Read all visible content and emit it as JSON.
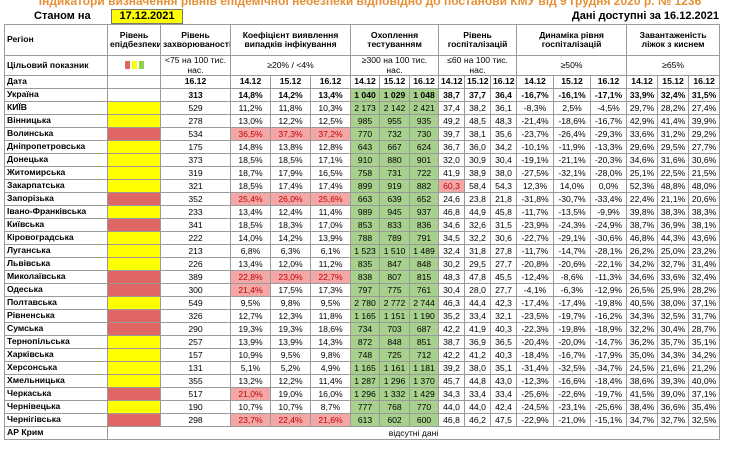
{
  "title": "Індикатори визначення рівнів епідемічної небезпеки відповідно до постанови КМУ від 9 грудня 2020 р. № 1236",
  "as_of_label": "Станом на",
  "as_of_date": "17.12.2021",
  "data_available": "Дані доступні за 16.12.2021",
  "header": {
    "region": "Регіон",
    "target": "Цільовий показник",
    "date": "Дата",
    "level": "Рівень епідбезпеки",
    "level_colors": [
      "#e06666",
      "#ffff00",
      "#92d050"
    ],
    "groups": [
      {
        "title": "Рівень захворюваності",
        "target": "<75 на 100 тис. нас.",
        "dates": [
          "16.12"
        ]
      },
      {
        "title": "Коефіцієнт виявлення випадків інфікування",
        "target": "≥20% / <4%",
        "dates": [
          "14.12",
          "15.12",
          "16.12"
        ]
      },
      {
        "title": "Охоплення тестуванням",
        "target": "≥300 на 100 тис. нас.",
        "dates": [
          "14.12",
          "15.12",
          "16.12"
        ]
      },
      {
        "title": "Рівень госпіталізацій",
        "target": "≤60 на 100 тис. нас.",
        "dates": [
          "14.12",
          "15.12",
          "16.12"
        ]
      },
      {
        "title": "Динаміка рівня госпіталізацій",
        "target": "≥50%",
        "dates": [
          "14.12",
          "15.12",
          "16.12"
        ]
      },
      {
        "title": "Завантаженість ліжок з киснем",
        "target": "≥65%",
        "dates": [
          "14.12",
          "15.12",
          "16.12"
        ]
      }
    ]
  },
  "rows": [
    {
      "region": "Україна",
      "cells": [
        "313",
        "14,8%",
        "14,2%",
        "13,4%",
        "1 040",
        "1 029",
        "1 048",
        "38,7",
        "37,7",
        "36,4",
        "-16,7%",
        "-16,1%",
        "-17,1%",
        "33,9%",
        "32,4%",
        "31,5%"
      ]
    },
    {
      "region": "КИЇВ",
      "level_color": "#ffff00",
      "cells": [
        "529",
        "11,2%",
        "11,8%",
        "10,3%",
        "2 173",
        "2 142",
        "2 421",
        "37,4",
        "38,2",
        "36,1",
        "-8,3%",
        "2,5%",
        "-4,5%",
        "29,7%",
        "28,2%",
        "27,4%"
      ]
    },
    {
      "region": "Вінницька",
      "level_color": "#ffff00",
      "cells": [
        "278",
        "13,0%",
        "12,2%",
        "12,5%",
        "985",
        "955",
        "935",
        "49,2",
        "48,5",
        "48,3",
        "-21,4%",
        "-18,6%",
        "-16,7%",
        "42,9%",
        "41,4%",
        "39,9%"
      ]
    },
    {
      "region": "Волинська",
      "level_color": "#e06666",
      "alert": [
        1,
        2,
        3
      ],
      "cells": [
        "534",
        "36,5%",
        "37,3%",
        "37,2%",
        "770",
        "732",
        "730",
        "39,7",
        "38,1",
        "35,6",
        "-23,7%",
        "-26,4%",
        "-29,3%",
        "33,6%",
        "31,2%",
        "29,2%"
      ]
    },
    {
      "region": "Дніпропетровська",
      "level_color": "#ffff00",
      "cells": [
        "175",
        "14,8%",
        "13,8%",
        "12,8%",
        "643",
        "667",
        "624",
        "36,7",
        "36,0",
        "34,2",
        "-10,1%",
        "-11,9%",
        "-13,3%",
        "29,6%",
        "29,5%",
        "27,7%"
      ]
    },
    {
      "region": "Донецька",
      "level_color": "#ffff00",
      "cells": [
        "373",
        "18,5%",
        "18,5%",
        "17,1%",
        "910",
        "880",
        "901",
        "32,0",
        "30,9",
        "30,4",
        "-19,1%",
        "-21,1%",
        "-20,3%",
        "34,6%",
        "31,6%",
        "30,6%"
      ]
    },
    {
      "region": "Житомирська",
      "level_color": "#ffff00",
      "cells": [
        "319",
        "18,7%",
        "17,9%",
        "16,5%",
        "758",
        "731",
        "722",
        "41,9",
        "38,9",
        "38,0",
        "-27,5%",
        "-32,1%",
        "-28,0%",
        "25,1%",
        "22,5%",
        "21,5%"
      ]
    },
    {
      "region": "Закарпатська",
      "level_color": "#ffff00",
      "alert": [
        7
      ],
      "cells": [
        "321",
        "18,5%",
        "17,4%",
        "17,4%",
        "899",
        "919",
        "882",
        "60,3",
        "58,4",
        "54,3",
        "12,3%",
        "14,0%",
        "0,0%",
        "52,3%",
        "48,8%",
        "48,0%"
      ]
    },
    {
      "region": "Запорізька",
      "level_color": "#e06666",
      "alert": [
        1,
        2,
        3
      ],
      "cells": [
        "352",
        "25,4%",
        "26,0%",
        "25,6%",
        "663",
        "639",
        "652",
        "24,6",
        "23,8",
        "21,8",
        "-31,8%",
        "-30,7%",
        "-33,4%",
        "22,4%",
        "21,1%",
        "20,6%"
      ]
    },
    {
      "region": "Івано-Франківська",
      "level_color": "#ffff00",
      "cells": [
        "233",
        "13,4%",
        "12,4%",
        "11,4%",
        "989",
        "945",
        "937",
        "46,8",
        "44,9",
        "45,8",
        "-11,7%",
        "-13,5%",
        "-9,9%",
        "39,8%",
        "38,3%",
        "38,3%"
      ]
    },
    {
      "region": "Київська",
      "level_color": "#e06666",
      "cells": [
        "341",
        "18,5%",
        "18,3%",
        "17,0%",
        "853",
        "833",
        "836",
        "34,6",
        "32,6",
        "31,5",
        "-23,9%",
        "-24,3%",
        "-24,9%",
        "38,7%",
        "36,9%",
        "38,1%"
      ]
    },
    {
      "region": "Кіровоградська",
      "level_color": "#ffff00",
      "cells": [
        "222",
        "14,0%",
        "14,2%",
        "13,9%",
        "788",
        "789",
        "791",
        "34,5",
        "32,2",
        "30,6",
        "-22,7%",
        "-29,1%",
        "-30,6%",
        "46,8%",
        "44,3%",
        "43,6%"
      ]
    },
    {
      "region": "Луганська",
      "level_color": "#ffff00",
      "cells": [
        "213",
        "6,8%",
        "6,3%",
        "6,1%",
        "1 523",
        "1 510",
        "1 489",
        "32,4",
        "31,8",
        "27,8",
        "-11,7%",
        "-14,7%",
        "-28,1%",
        "26,2%",
        "25,0%",
        "23,2%"
      ]
    },
    {
      "region": "Львівська",
      "level_color": "#ffff00",
      "cells": [
        "226",
        "13,4%",
        "12,0%",
        "11,2%",
        "835",
        "847",
        "848",
        "30,2",
        "29,5",
        "27,7",
        "-20,8%",
        "-20,6%",
        "-22,1%",
        "34,2%",
        "32,7%",
        "31,4%"
      ]
    },
    {
      "region": "Миколаївська",
      "level_color": "#e06666",
      "alert": [
        1,
        2,
        3
      ],
      "cells": [
        "389",
        "22,8%",
        "23,0%",
        "22,7%",
        "838",
        "807",
        "815",
        "48,3",
        "47,8",
        "45,5",
        "-12,4%",
        "-8,6%",
        "-11,3%",
        "34,6%",
        "33,6%",
        "32,4%"
      ]
    },
    {
      "region": "Одеська",
      "level_color": "#e06666",
      "alert": [
        1
      ],
      "cells": [
        "300",
        "21,4%",
        "17,5%",
        "17,3%",
        "797",
        "775",
        "761",
        "30,4",
        "28,0",
        "27,7",
        "-4,1%",
        "-6,3%",
        "-12,9%",
        "26,5%",
        "25,9%",
        "28,2%"
      ]
    },
    {
      "region": "Полтавська",
      "level_color": "#ffff00",
      "cells": [
        "549",
        "9,5%",
        "9,8%",
        "9,5%",
        "2 780",
        "2 772",
        "2 744",
        "46,3",
        "44,4",
        "42,3",
        "-17,4%",
        "-17,4%",
        "-19,8%",
        "40,5%",
        "38,0%",
        "37,1%"
      ]
    },
    {
      "region": "Рівненська",
      "level_color": "#e06666",
      "cells": [
        "326",
        "12,7%",
        "12,3%",
        "11,8%",
        "1 165",
        "1 151",
        "1 190",
        "35,2",
        "33,4",
        "32,1",
        "-23,5%",
        "-19,7%",
        "-16,2%",
        "34,3%",
        "32,5%",
        "31,7%"
      ]
    },
    {
      "region": "Сумська",
      "level_color": "#e06666",
      "cells": [
        "290",
        "19,3%",
        "19,3%",
        "18,6%",
        "734",
        "703",
        "687",
        "42,2",
        "41,9",
        "40,3",
        "-22,3%",
        "-19,8%",
        "-18,9%",
        "32,2%",
        "30,4%",
        "28,7%"
      ]
    },
    {
      "region": "Тернопільська",
      "level_color": "#ffff00",
      "cells": [
        "257",
        "13,9%",
        "13,9%",
        "14,3%",
        "872",
        "848",
        "851",
        "38,7",
        "36,9",
        "36,5",
        "-20,4%",
        "-20,0%",
        "-14,7%",
        "36,2%",
        "35,7%",
        "35,1%"
      ]
    },
    {
      "region": "Харківська",
      "level_color": "#ffff00",
      "cells": [
        "157",
        "10,9%",
        "9,5%",
        "9,8%",
        "748",
        "725",
        "712",
        "42,2",
        "41,2",
        "40,3",
        "-18,4%",
        "-16,7%",
        "-17,9%",
        "35,0%",
        "34,3%",
        "34,2%"
      ]
    },
    {
      "region": "Херсонська",
      "level_color": "#ffff00",
      "cells": [
        "131",
        "5,1%",
        "5,2%",
        "4,9%",
        "1 165",
        "1 161",
        "1 181",
        "39,2",
        "38,0",
        "35,1",
        "-31,4%",
        "-32,5%",
        "-34,7%",
        "24,5%",
        "21,6%",
        "21,2%"
      ]
    },
    {
      "region": "Хмельницька",
      "level_color": "#ffff00",
      "cells": [
        "355",
        "13,2%",
        "12,2%",
        "11,4%",
        "1 287",
        "1 296",
        "1 370",
        "45,7",
        "44,8",
        "43,0",
        "-12,3%",
        "-16,6%",
        "-18,4%",
        "38,6%",
        "39,3%",
        "40,0%"
      ]
    },
    {
      "region": "Черкаська",
      "level_color": "#e06666",
      "alert": [
        1
      ],
      "cells": [
        "517",
        "21,0%",
        "19,0%",
        "16,0%",
        "1 296",
        "1 332",
        "1 429",
        "34,3",
        "33,4",
        "33,4",
        "-25,6%",
        "-22,6%",
        "-19,7%",
        "41,5%",
        "39,0%",
        "37,1%"
      ]
    },
    {
      "region": "Чернівецька",
      "level_color": "#ffff00",
      "cells": [
        "190",
        "10,7%",
        "10,7%",
        "8,7%",
        "777",
        "768",
        "770",
        "44,0",
        "44,0",
        "42,4",
        "-24,5%",
        "-23,1%",
        "-25,6%",
        "38,4%",
        "36,6%",
        "35,4%"
      ]
    },
    {
      "region": "Чернігівська",
      "level_color": "#e06666",
      "alert": [
        1,
        2,
        3
      ],
      "cells": [
        "298",
        "23,7%",
        "22,4%",
        "21,6%",
        "613",
        "602",
        "600",
        "46,8",
        "46,2",
        "47,5",
        "-22,9%",
        "-21,0%",
        "-15,1%",
        "34,7%",
        "32,7%",
        "32,5%"
      ]
    },
    {
      "region": "АР Крим",
      "note": "відсутні дані"
    }
  ]
}
